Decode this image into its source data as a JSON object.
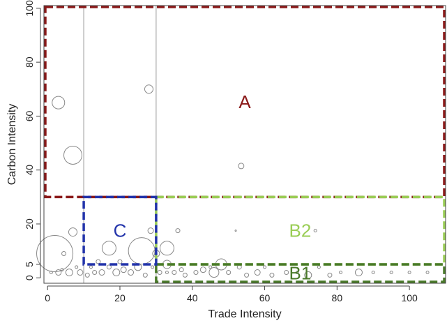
{
  "chart_data": {
    "type": "scatter",
    "xlabel": "Trade Intensity",
    "ylabel": "Carbon Intensity",
    "xlim": [
      -1,
      110
    ],
    "ylim": [
      -2,
      101
    ],
    "x_ticks": [
      "0",
      "20",
      "40",
      "60",
      "80",
      "100"
    ],
    "y_ticks": [
      "0",
      "5",
      "20",
      "40",
      "60",
      "80",
      "100"
    ],
    "vertical_reference_lines": [
      10,
      30
    ],
    "grid": false,
    "regions": [
      {
        "label": "A",
        "x0": -1,
        "x1": 110,
        "y0": 30,
        "y1": 101,
        "color": "#8b1a1a"
      },
      {
        "label": "B2",
        "x0": 30,
        "x1": 110,
        "y0": 5,
        "y1": 30,
        "color": "#9acd55"
      },
      {
        "label": "B1",
        "x0": 30,
        "x1": 110,
        "y0": -2,
        "y1": 5,
        "color": "#4a7a2a"
      },
      {
        "label": "C",
        "x0": 10,
        "x1": 30,
        "y0": 5,
        "y1": 30,
        "color": "#2233aa"
      }
    ],
    "points": [
      {
        "x": 2,
        "y": 9,
        "r": 26
      },
      {
        "x": 4.5,
        "y": 9,
        "r": 3
      },
      {
        "x": 3,
        "y": 65,
        "r": 9
      },
      {
        "x": 7,
        "y": 45.5,
        "r": 13
      },
      {
        "x": 28,
        "y": 70,
        "r": 6
      },
      {
        "x": 53.5,
        "y": 41.5,
        "r": 4
      },
      {
        "x": 7,
        "y": 17,
        "r": 6
      },
      {
        "x": 6,
        "y": 2,
        "r": 5
      },
      {
        "x": 3,
        "y": 2,
        "r": 4
      },
      {
        "x": 17,
        "y": 11,
        "r": 10
      },
      {
        "x": 26,
        "y": 10,
        "r": 19
      },
      {
        "x": 28.5,
        "y": 17.5,
        "r": 4
      },
      {
        "x": 25,
        "y": 4,
        "r": 5
      },
      {
        "x": 33,
        "y": 11,
        "r": 10
      },
      {
        "x": 36,
        "y": 17.5,
        "r": 3
      },
      {
        "x": 33,
        "y": 5,
        "r": 6
      },
      {
        "x": 48,
        "y": 5,
        "r": 8
      },
      {
        "x": 46,
        "y": 2,
        "r": 7
      },
      {
        "x": 53,
        "y": 4,
        "r": 3
      },
      {
        "x": 58,
        "y": 2,
        "r": 4
      },
      {
        "x": 62,
        "y": 1,
        "r": 3
      },
      {
        "x": 72,
        "y": 1,
        "r": 5
      },
      {
        "x": 78,
        "y": 1,
        "r": 3
      },
      {
        "x": 86,
        "y": 2,
        "r": 5
      },
      {
        "x": 74,
        "y": 17.5,
        "r": 2
      },
      {
        "x": 52,
        "y": 17.5,
        "r": 1
      },
      {
        "x": 15,
        "y": 2,
        "r": 4
      },
      {
        "x": 19,
        "y": 2,
        "r": 5
      },
      {
        "x": 21,
        "y": 3,
        "r": 4
      },
      {
        "x": 11,
        "y": 1,
        "r": 3
      },
      {
        "x": 13,
        "y": 2,
        "r": 3
      },
      {
        "x": 9,
        "y": 2,
        "r": 4
      },
      {
        "x": 23,
        "y": 2,
        "r": 4
      },
      {
        "x": 27,
        "y": 1,
        "r": 3
      },
      {
        "x": 31,
        "y": 2,
        "r": 3
      },
      {
        "x": 35,
        "y": 2,
        "r": 3
      },
      {
        "x": 38,
        "y": 1,
        "r": 3
      },
      {
        "x": 41,
        "y": 2,
        "r": 3
      },
      {
        "x": 43,
        "y": 3,
        "r": 4
      },
      {
        "x": 50,
        "y": 2,
        "r": 3
      },
      {
        "x": 55,
        "y": 1,
        "r": 3
      },
      {
        "x": 66,
        "y": 2,
        "r": 3
      },
      {
        "x": 69,
        "y": 2,
        "r": 2
      },
      {
        "x": 81,
        "y": 2,
        "r": 2
      },
      {
        "x": 90,
        "y": 2,
        "r": 2
      },
      {
        "x": 95,
        "y": 2,
        "r": 2
      },
      {
        "x": 100,
        "y": 2,
        "r": 2
      },
      {
        "x": 105,
        "y": 2,
        "r": 2
      },
      {
        "x": 17,
        "y": 4,
        "r": 3
      },
      {
        "x": 12,
        "y": 4,
        "r": 2
      },
      {
        "x": 8,
        "y": 4,
        "r": 2
      },
      {
        "x": 4,
        "y": 3,
        "r": 2
      },
      {
        "x": 1,
        "y": 2,
        "r": 2
      },
      {
        "x": 20,
        "y": 6,
        "r": 3
      },
      {
        "x": 14,
        "y": 6,
        "r": 3
      },
      {
        "x": 30,
        "y": 9,
        "r": 5
      },
      {
        "x": 37,
        "y": 3,
        "r": 3
      },
      {
        "x": 45,
        "y": 4,
        "r": 2
      },
      {
        "x": 60,
        "y": 4,
        "r": 2
      },
      {
        "x": 75,
        "y": 4,
        "r": 2
      },
      {
        "x": 29,
        "y": 4,
        "r": 2
      },
      {
        "x": 33,
        "y": 2,
        "r": 2
      }
    ]
  }
}
